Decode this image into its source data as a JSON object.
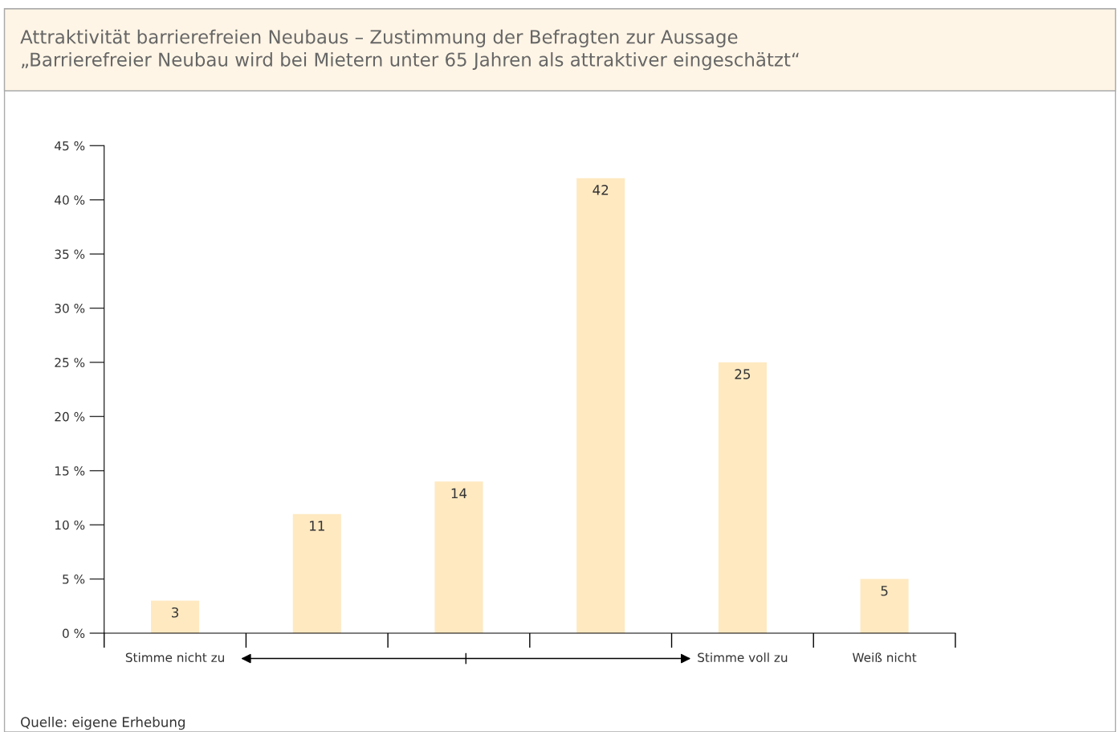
{
  "chart_data": {
    "type": "bar",
    "title": "Attraktivität barrierefreien Neubaus – Zustimmung der Befragten zur Aussage\n„Barrierefreier Neubau wird bei Mietern unter 65 Jahren als attraktiver eingeschätzt“",
    "categories": [
      "Stimme nicht zu",
      null,
      null,
      null,
      "Stimme voll zu",
      "Weiß nicht"
    ],
    "values": [
      3,
      11,
      14,
      42,
      25,
      5
    ],
    "color": "#fee9c1",
    "data_labels": true,
    "ylim": [
      0,
      45
    ],
    "yticks": [
      {
        "value": 0,
        "label": "0 %"
      },
      {
        "value": 5,
        "label": "5 %"
      },
      {
        "value": 10,
        "label": "10 %"
      },
      {
        "value": 15,
        "label": "15 %"
      },
      {
        "value": 20,
        "label": "20 %"
      },
      {
        "value": 25,
        "label": "25 %"
      },
      {
        "value": 30,
        "label": "30 %"
      },
      {
        "value": 35,
        "label": "35 %"
      },
      {
        "value": 40,
        "label": "40 %"
      },
      {
        "value": 45,
        "label": "45 %"
      }
    ],
    "grid": false,
    "legend": false,
    "annotations": [
      "Quelle: eigene Erhebung"
    ]
  }
}
